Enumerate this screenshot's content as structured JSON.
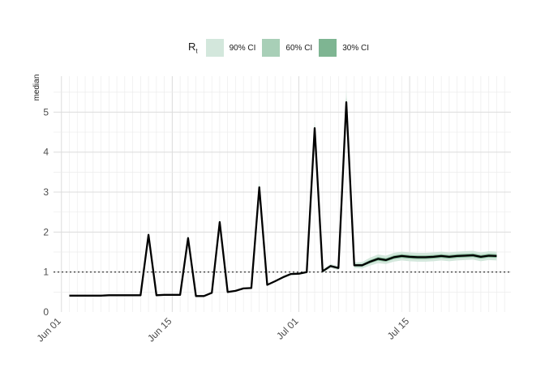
{
  "legend": {
    "title_main": "R",
    "title_sub": "t",
    "items": [
      {
        "label": "90% CI",
        "color": "#d3e7dc"
      },
      {
        "label": "60% CI",
        "color": "#a8cfb7"
      },
      {
        "label": "30% CI",
        "color": "#7eb592"
      }
    ]
  },
  "chart_data": {
    "type": "line",
    "ylabel": "median",
    "xlabel": "",
    "title": "",
    "ylim": [
      0,
      5.9
    ],
    "x_tick_labels": [
      "Jun 01",
      "Jun 15",
      "Jul 01",
      "Jul 15"
    ],
    "y_ticks": [
      0,
      1,
      2,
      3,
      4,
      5
    ],
    "reference_line": 1,
    "grid": true,
    "legend_position": "top",
    "series": [
      {
        "x": [
          "2020-06-02",
          "2020-06-03",
          "2020-06-04",
          "2020-06-05",
          "2020-06-06",
          "2020-06-07",
          "2020-06-08",
          "2020-06-09",
          "2020-06-10",
          "2020-06-11",
          "2020-06-12",
          "2020-06-13",
          "2020-06-14",
          "2020-06-15",
          "2020-06-16",
          "2020-06-17",
          "2020-06-18",
          "2020-06-19",
          "2020-06-20",
          "2020-06-21",
          "2020-06-22",
          "2020-06-23",
          "2020-06-24",
          "2020-06-25",
          "2020-06-26",
          "2020-06-27",
          "2020-06-28",
          "2020-06-29",
          "2020-06-30",
          "2020-07-01",
          "2020-07-02",
          "2020-07-03",
          "2020-07-04",
          "2020-07-05",
          "2020-07-06",
          "2020-07-07",
          "2020-07-08",
          "2020-07-09",
          "2020-07-10",
          "2020-07-11",
          "2020-07-12",
          "2020-07-13",
          "2020-07-14",
          "2020-07-15",
          "2020-07-16",
          "2020-07-17",
          "2020-07-18",
          "2020-07-19",
          "2020-07-20",
          "2020-07-21",
          "2020-07-22",
          "2020-07-23",
          "2020-07-24",
          "2020-07-25",
          "2020-07-26"
        ],
        "median": [
          0.41,
          0.41,
          0.41,
          0.41,
          0.41,
          0.42,
          0.42,
          0.42,
          0.42,
          0.42,
          1.93,
          0.42,
          0.43,
          0.43,
          0.43,
          1.85,
          0.4,
          0.4,
          0.48,
          2.25,
          0.5,
          0.53,
          0.59,
          0.6,
          3.12,
          0.68,
          0.77,
          0.87,
          0.95,
          0.96,
          1.0,
          4.6,
          1.02,
          1.15,
          1.1,
          5.25,
          1.17,
          1.17,
          1.26,
          1.33,
          1.3,
          1.37,
          1.4,
          1.38,
          1.37,
          1.37,
          1.38,
          1.4,
          1.38,
          1.4,
          1.41,
          1.42,
          1.38,
          1.41,
          1.4
        ],
        "ci90_lower": [
          0.41,
          0.41,
          0.41,
          0.41,
          0.41,
          0.42,
          0.42,
          0.42,
          0.42,
          0.42,
          1.88,
          0.42,
          0.43,
          0.43,
          0.43,
          1.8,
          0.4,
          0.4,
          0.48,
          2.2,
          0.5,
          0.53,
          0.59,
          0.6,
          3.0,
          0.66,
          0.75,
          0.84,
          0.92,
          0.93,
          0.97,
          4.45,
          0.98,
          1.1,
          1.05,
          5.05,
          1.1,
          1.09,
          1.16,
          1.22,
          1.2,
          1.26,
          1.29,
          1.27,
          1.26,
          1.26,
          1.27,
          1.29,
          1.27,
          1.29,
          1.3,
          1.31,
          1.27,
          1.3,
          1.29
        ],
        "ci90_upper": [
          0.41,
          0.41,
          0.41,
          0.41,
          0.41,
          0.42,
          0.42,
          0.42,
          0.42,
          0.42,
          2.0,
          0.42,
          0.43,
          0.43,
          0.43,
          1.92,
          0.4,
          0.4,
          0.48,
          2.34,
          0.5,
          0.53,
          0.59,
          0.6,
          3.3,
          0.7,
          0.79,
          0.9,
          0.98,
          0.99,
          1.03,
          4.8,
          1.06,
          1.2,
          1.15,
          5.55,
          1.24,
          1.25,
          1.36,
          1.44,
          1.41,
          1.48,
          1.51,
          1.49,
          1.48,
          1.48,
          1.49,
          1.51,
          1.49,
          1.51,
          1.52,
          1.53,
          1.49,
          1.52,
          1.51
        ]
      }
    ]
  }
}
